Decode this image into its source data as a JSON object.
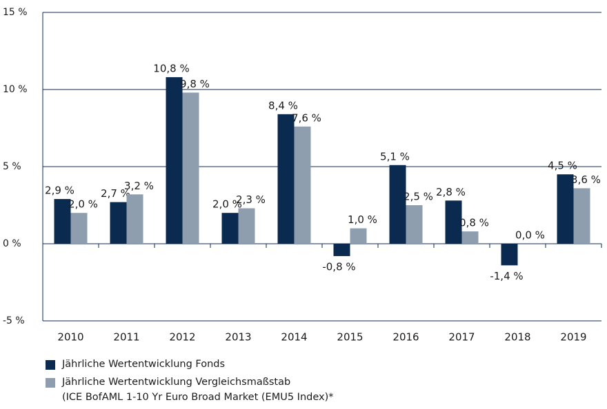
{
  "chart_data": {
    "type": "bar",
    "categories": [
      "2010",
      "2011",
      "2012",
      "2013",
      "2014",
      "2015",
      "2016",
      "2017",
      "2018",
      "2019"
    ],
    "series": [
      {
        "name": "Jährliche Wertentwicklung Fonds",
        "color": "#0b2a50",
        "values": [
          2.9,
          2.7,
          10.8,
          2.0,
          8.4,
          -0.8,
          5.1,
          2.8,
          -1.4,
          4.5
        ],
        "value_labels": [
          "2,9 %",
          "2,7 %",
          "10,8 %",
          "2,0 %",
          "8,4 %",
          "-0,8 %",
          "5,1 %",
          "2,8 %",
          "-1,4 %",
          "4,5 %"
        ]
      },
      {
        "name": "Jährliche Wertentwicklung Vergleichsmaßstab\n(ICE BofAML 1-10 Yr Euro Broad Market (EMU5 Index)*",
        "color": "#8e9eae",
        "values": [
          2.0,
          3.2,
          9.8,
          2.3,
          7.6,
          1.0,
          2.5,
          0.8,
          0.0,
          3.6
        ],
        "value_labels": [
          "2,0 %",
          "3,2 %",
          "9,8 %",
          "2,3 %",
          "7,6 %",
          "1,0 %",
          "2,5 %",
          "0,8 %",
          "0,0 %",
          "3,6 %"
        ]
      }
    ],
    "ylim": [
      -5,
      15
    ],
    "yticks": [
      {
        "value": -5,
        "label": "-5 %"
      },
      {
        "value": 0,
        "label": "0 %"
      },
      {
        "value": 5,
        "label": "5 %"
      },
      {
        "value": 10,
        "label": "10 %"
      },
      {
        "value": 15,
        "label": "15 %"
      }
    ],
    "grid": true
  }
}
